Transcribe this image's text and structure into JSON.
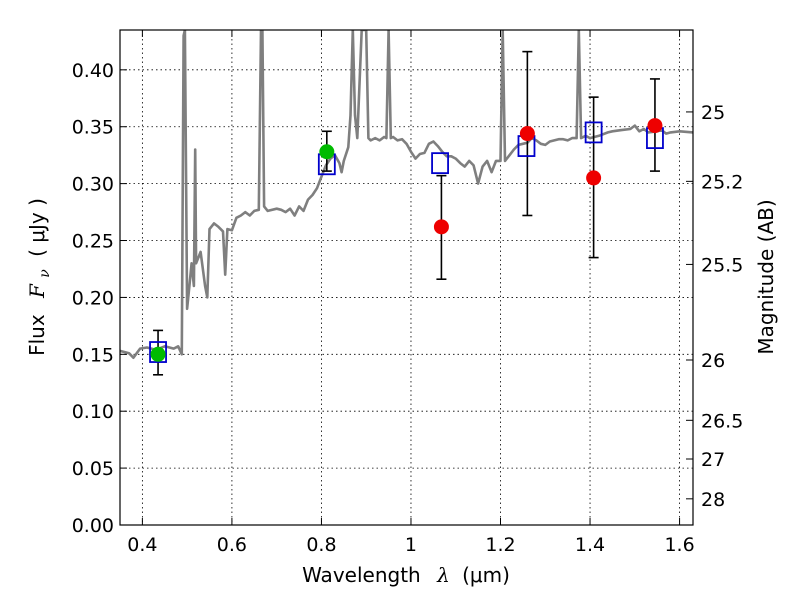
{
  "chart_data": {
    "type": "scatter",
    "title": "",
    "xlabel": "Wavelength",
    "xlabel_symbol": "λ",
    "xlabel_unit": "(μm)",
    "ylabel": "Flux",
    "ylabel_symbol": "F",
    "ylabel_subscript": "ν",
    "ylabel_unit": "( μJy )",
    "y2label": "Magnitude (AB)",
    "xlim": [
      0.35,
      1.63
    ],
    "ylim": [
      0.0,
      0.435
    ],
    "grid": true,
    "x_ticks": [
      0.4,
      0.6,
      0.8,
      1.0,
      1.2,
      1.4,
      1.6
    ],
    "x_tick_labels": [
      "0.4",
      "0.6",
      "0.8",
      "1",
      "1.2",
      "1.4",
      "1.6"
    ],
    "y_ticks": [
      0.0,
      0.05,
      0.1,
      0.15,
      0.2,
      0.25,
      0.3,
      0.35,
      0.4
    ],
    "y_tick_labels": [
      "0.00",
      "0.05",
      "0.10",
      "0.15",
      "0.20",
      "0.25",
      "0.30",
      "0.35",
      "0.40"
    ],
    "mag_ticks": [
      {
        "label": "25",
        "flux": 0.363
      },
      {
        "label": "25.2",
        "flux": 0.302
      },
      {
        "label": "25.5",
        "flux": 0.229
      },
      {
        "label": "26",
        "flux": 0.145
      },
      {
        "label": "26.5",
        "flux": 0.092
      },
      {
        "label": "27",
        "flux": 0.058
      },
      {
        "label": "28",
        "flux": 0.023
      }
    ],
    "colors": {
      "spectrum": "#7f7f7f",
      "model": "#0000cc",
      "green": "#00bb00",
      "red": "#ee0000",
      "errorbar": "#000000",
      "grid": "#000000"
    },
    "series": [
      {
        "kind": "line",
        "points": [
          [
            0.35,
            0.153
          ],
          [
            0.37,
            0.151
          ],
          [
            0.38,
            0.147
          ],
          [
            0.395,
            0.155
          ],
          [
            0.41,
            0.156
          ],
          [
            0.43,
            0.154
          ],
          [
            0.45,
            0.157
          ],
          [
            0.47,
            0.155
          ],
          [
            0.48,
            0.157
          ],
          [
            0.488,
            0.15
          ],
          [
            0.492,
            0.43
          ],
          [
            0.495,
            0.435
          ],
          [
            0.5,
            0.19
          ],
          [
            0.505,
            0.21
          ],
          [
            0.51,
            0.23
          ],
          [
            0.515,
            0.21
          ],
          [
            0.518,
            0.33
          ],
          [
            0.52,
            0.23
          ],
          [
            0.53,
            0.24
          ],
          [
            0.54,
            0.21
          ],
          [
            0.545,
            0.2
          ],
          [
            0.55,
            0.26
          ],
          [
            0.56,
            0.265
          ],
          [
            0.57,
            0.262
          ],
          [
            0.58,
            0.258
          ],
          [
            0.585,
            0.22
          ],
          [
            0.59,
            0.26
          ],
          [
            0.6,
            0.259
          ],
          [
            0.61,
            0.27
          ],
          [
            0.62,
            0.272
          ],
          [
            0.63,
            0.275
          ],
          [
            0.64,
            0.272
          ],
          [
            0.65,
            0.276
          ],
          [
            0.66,
            0.277
          ],
          [
            0.665,
            0.435
          ],
          [
            0.668,
            0.435
          ],
          [
            0.672,
            0.28
          ],
          [
            0.68,
            0.276
          ],
          [
            0.7,
            0.278
          ],
          [
            0.71,
            0.277
          ],
          [
            0.72,
            0.275
          ],
          [
            0.73,
            0.278
          ],
          [
            0.74,
            0.272
          ],
          [
            0.75,
            0.28
          ],
          [
            0.76,
            0.276
          ],
          [
            0.77,
            0.286
          ],
          [
            0.78,
            0.29
          ],
          [
            0.79,
            0.296
          ],
          [
            0.8,
            0.306
          ],
          [
            0.81,
            0.316
          ],
          [
            0.82,
            0.322
          ],
          [
            0.83,
            0.325
          ],
          [
            0.84,
            0.318
          ],
          [
            0.845,
            0.31
          ],
          [
            0.85,
            0.32
          ],
          [
            0.86,
            0.332
          ],
          [
            0.865,
            0.36
          ],
          [
            0.87,
            0.435
          ],
          [
            0.875,
            0.36
          ],
          [
            0.88,
            0.34
          ],
          [
            0.89,
            0.435
          ],
          [
            0.9,
            0.435
          ],
          [
            0.905,
            0.34
          ],
          [
            0.91,
            0.338
          ],
          [
            0.92,
            0.34
          ],
          [
            0.93,
            0.338
          ],
          [
            0.94,
            0.341
          ],
          [
            0.945,
            0.34
          ],
          [
            0.95,
            0.435
          ],
          [
            0.955,
            0.34
          ],
          [
            0.96,
            0.341
          ],
          [
            0.97,
            0.338
          ],
          [
            0.98,
            0.339
          ],
          [
            0.99,
            0.335
          ],
          [
            1.0,
            0.328
          ],
          [
            1.01,
            0.322
          ],
          [
            1.02,
            0.326
          ],
          [
            1.03,
            0.327
          ],
          [
            1.04,
            0.335
          ],
          [
            1.05,
            0.337
          ],
          [
            1.06,
            0.333
          ],
          [
            1.07,
            0.328
          ],
          [
            1.08,
            0.324
          ],
          [
            1.09,
            0.324
          ],
          [
            1.1,
            0.322
          ],
          [
            1.11,
            0.318
          ],
          [
            1.12,
            0.315
          ],
          [
            1.13,
            0.32
          ],
          [
            1.14,
            0.316
          ],
          [
            1.15,
            0.3
          ],
          [
            1.16,
            0.315
          ],
          [
            1.17,
            0.32
          ],
          [
            1.18,
            0.31
          ],
          [
            1.19,
            0.32
          ],
          [
            1.2,
            0.32
          ],
          [
            1.205,
            0.435
          ],
          [
            1.21,
            0.32
          ],
          [
            1.22,
            0.325
          ],
          [
            1.23,
            0.33
          ],
          [
            1.24,
            0.334
          ],
          [
            1.25,
            0.335
          ],
          [
            1.26,
            0.336
          ],
          [
            1.27,
            0.34
          ],
          [
            1.28,
            0.338
          ],
          [
            1.29,
            0.335
          ],
          [
            1.3,
            0.334
          ],
          [
            1.31,
            0.337
          ],
          [
            1.32,
            0.338
          ],
          [
            1.33,
            0.339
          ],
          [
            1.34,
            0.339
          ],
          [
            1.35,
            0.338
          ],
          [
            1.36,
            0.34
          ],
          [
            1.37,
            0.34
          ],
          [
            1.375,
            0.435
          ],
          [
            1.38,
            0.34
          ],
          [
            1.39,
            0.342
          ],
          [
            1.4,
            0.34
          ],
          [
            1.42,
            0.342
          ],
          [
            1.44,
            0.345
          ],
          [
            1.45,
            0.346
          ],
          [
            1.47,
            0.347
          ],
          [
            1.49,
            0.348
          ],
          [
            1.5,
            0.351
          ],
          [
            1.51,
            0.346
          ],
          [
            1.52,
            0.348
          ],
          [
            1.53,
            0.345
          ],
          [
            1.55,
            0.346
          ],
          [
            1.56,
            0.347
          ],
          [
            1.57,
            0.344
          ],
          [
            1.58,
            0.345
          ],
          [
            1.6,
            0.346
          ],
          [
            1.63,
            0.345
          ]
        ]
      },
      {
        "kind": "model-squares",
        "points": [
          [
            0.435,
            0.152
          ],
          [
            0.812,
            0.317
          ],
          [
            1.065,
            0.318
          ],
          [
            1.258,
            0.333
          ],
          [
            1.408,
            0.345
          ],
          [
            1.545,
            0.34
          ]
        ]
      },
      {
        "kind": "green-points",
        "points": [
          [
            0.435,
            0.15
          ],
          [
            0.812,
            0.328
          ]
        ]
      },
      {
        "kind": "red-points",
        "points": [
          [
            1.068,
            0.262
          ],
          [
            1.26,
            0.344
          ],
          [
            1.408,
            0.305
          ],
          [
            1.545,
            0.351
          ]
        ]
      },
      {
        "kind": "error-bars",
        "bars": [
          {
            "x": 0.435,
            "low": 0.132,
            "high": 0.171
          },
          {
            "x": 0.812,
            "low": 0.311,
            "high": 0.346
          },
          {
            "x": 1.068,
            "low": 0.216,
            "high": 0.307
          },
          {
            "x": 1.26,
            "low": 0.272,
            "high": 0.416
          },
          {
            "x": 1.408,
            "low": 0.235,
            "high": 0.376
          },
          {
            "x": 1.545,
            "low": 0.311,
            "high": 0.392
          }
        ]
      }
    ]
  }
}
